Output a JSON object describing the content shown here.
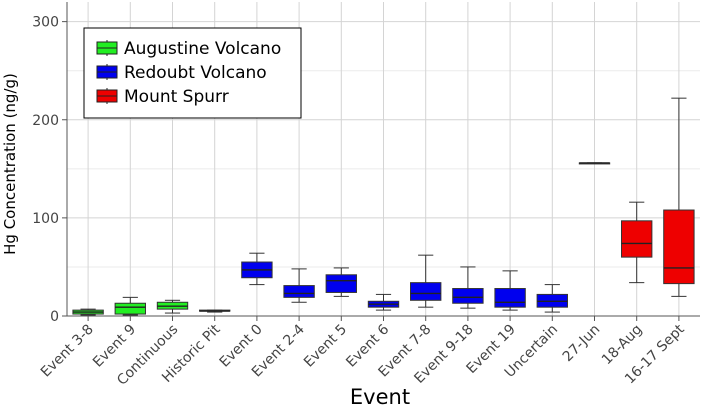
{
  "chart_data": {
    "type": "box",
    "xlabel": "Event",
    "ylabel": "Hg Concentration (ng/g)",
    "ylim": [
      0,
      320
    ],
    "yticks": [
      0,
      100,
      200,
      300
    ],
    "grid": true,
    "legend_position": "top-left",
    "legend": [
      {
        "name": "Augustine Volcano",
        "color": "#22ee22"
      },
      {
        "name": "Redoubt Volcano",
        "color": "#0000ee"
      },
      {
        "name": "Mount Spurr",
        "color": "#ee0000"
      }
    ],
    "categories": [
      {
        "label": "Event 3-8",
        "group": "Augustine Volcano",
        "min": 1,
        "q1": 2,
        "median": 4,
        "q3": 6,
        "max": 7
      },
      {
        "label": "Event 9",
        "group": "Augustine Volcano",
        "min": 1,
        "q1": 2,
        "median": 9,
        "q3": 13,
        "max": 19
      },
      {
        "label": "Continuous",
        "group": "Augustine Volcano",
        "min": 3,
        "q1": 7,
        "median": 10,
        "q3": 14,
        "max": 16
      },
      {
        "label": "Historic Pit",
        "group": "Augustine Volcano",
        "min": 4,
        "q1": 5,
        "median": 5,
        "q3": 6,
        "max": 6
      },
      {
        "label": "Event 0",
        "group": "Redoubt Volcano",
        "min": 32,
        "q1": 39,
        "median": 47,
        "q3": 55,
        "max": 64
      },
      {
        "label": "Event 2-4",
        "group": "Redoubt Volcano",
        "min": 14,
        "q1": 19,
        "median": 23,
        "q3": 31,
        "max": 48
      },
      {
        "label": "Event 5",
        "group": "Redoubt Volcano",
        "min": 20,
        "q1": 24,
        "median": 36,
        "q3": 42,
        "max": 49
      },
      {
        "label": "Event 6",
        "group": "Redoubt Volcano",
        "min": 6,
        "q1": 9,
        "median": 12,
        "q3": 15,
        "max": 22
      },
      {
        "label": "Event 7-8",
        "group": "Redoubt Volcano",
        "min": 9,
        "q1": 16,
        "median": 23,
        "q3": 34,
        "max": 62
      },
      {
        "label": "Event 9-18",
        "group": "Redoubt Volcano",
        "min": 8,
        "q1": 13,
        "median": 19,
        "q3": 28,
        "max": 50
      },
      {
        "label": "Event 19",
        "group": "Redoubt Volcano",
        "min": 6,
        "q1": 9,
        "median": 14,
        "q3": 28,
        "max": 46
      },
      {
        "label": "Uncertain",
        "group": "Redoubt Volcano",
        "min": 4,
        "q1": 9,
        "median": 15,
        "q3": 22,
        "max": 32
      },
      {
        "label": "27-Jun",
        "group": "Mount Spurr",
        "min": 156,
        "q1": 156,
        "median": 156,
        "q3": 156,
        "max": 156
      },
      {
        "label": "18-Aug",
        "group": "Mount Spurr",
        "min": 34,
        "q1": 60,
        "median": 74,
        "q3": 97,
        "max": 116
      },
      {
        "label": "16-17 Sept",
        "group": "Mount Spurr",
        "min": 20,
        "q1": 33,
        "median": 49,
        "q3": 108,
        "max": 222
      }
    ]
  }
}
